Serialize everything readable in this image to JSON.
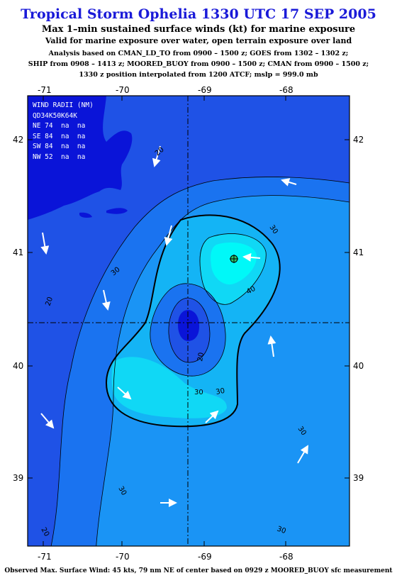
{
  "title": "Tropical Storm Ophelia 1330 UTC 17 SEP 2005",
  "subtitle": "Max 1–min sustained surface winds (kt) for marine exposure",
  "subtitle2": "Valid for marine exposure over water, open terrain exposure over land",
  "analysis": {
    "line1": "Analysis based on  CMAN_LD_TO from 0900 – 1500 z;  GOES from 1302 – 1302 z;",
    "line2": "SHIP from 0908 – 1413 z;  MOORED_BUOY from 0900 – 1500 z;  CMAN from 0900 – 1500 z;",
    "line3": "1330 z position interpolated from 1200 ATCF; mslp = 999.0 mb"
  },
  "wind_radii": {
    "header1": "WIND RADII (NM)",
    "header2": "QD34K50K64K",
    "rows": [
      "NE 74  na  na",
      "SE 84  na  na",
      "SW 84  na  na",
      "NW 52  na  na"
    ]
  },
  "map": {
    "lon_labels": [
      "-71",
      "-70",
      "-69",
      "-68"
    ],
    "lat_labels": [
      "42",
      "41",
      "40",
      "39"
    ],
    "contour_labels": [
      "20",
      "30",
      "30",
      "40",
      "20",
      "30",
      "30",
      "30",
      "20",
      "30",
      "30",
      "20"
    ],
    "colors": {
      "fill_20": "#1f52e6",
      "fill_25": "#1a73f0",
      "fill_30": "#1a94f5",
      "fill_35": "#14b4f5",
      "fill_40": "#10d8f5",
      "fill_45": "#00f8f8",
      "land": "#0a14d8",
      "arrow": "#ffffff"
    }
  },
  "footer": "Observed Max. Surface Wind: 45 kts, 79 nm NE of center based on 0929 z MOORED_BUOY sfc measurement"
}
